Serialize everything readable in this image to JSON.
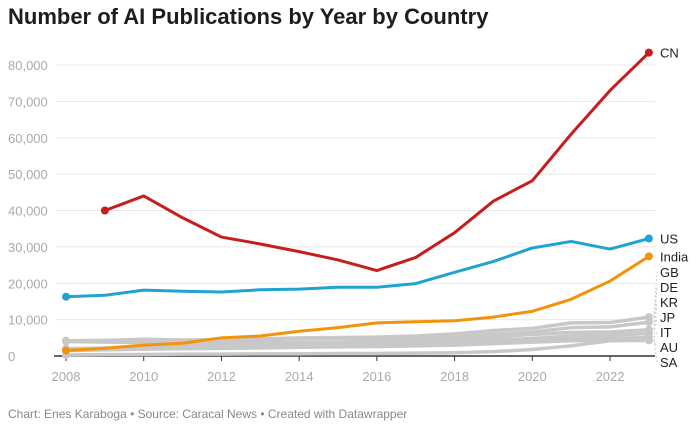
{
  "chart_data": {
    "type": "line",
    "title": "Number of AI Publications by Year by Country",
    "footer": "Chart: Enes Karaboga • Source: Caracal News • Created with Datawrapper",
    "x": [
      2008,
      2009,
      2010,
      2011,
      2012,
      2013,
      2014,
      2015,
      2016,
      2017,
      2018,
      2019,
      2020,
      2021,
      2022,
      2023
    ],
    "xticks": [
      "2008",
      "2010",
      "2012",
      "2014",
      "2016",
      "2018",
      "2020",
      "2022"
    ],
    "yticks": [
      "0",
      "10,000",
      "20,000",
      "30,000",
      "40,000",
      "50,000",
      "60,000",
      "70,000",
      "80,000"
    ],
    "ylim": [
      0,
      80000
    ],
    "grid": true,
    "series": [
      {
        "name": "SA",
        "color": "#c8c8c8",
        "values": [
          300,
          400,
          400,
          500,
          500,
          600,
          600,
          700,
          700,
          800,
          900,
          1200,
          1800,
          2800,
          4200,
          4300
        ]
      },
      {
        "name": "AU",
        "color": "#c8c8c8",
        "values": [
          1500,
          1700,
          1900,
          2000,
          2100,
          2200,
          2400,
          2500,
          2600,
          2800,
          3000,
          3400,
          3800,
          4200,
          4400,
          4600
        ]
      },
      {
        "name": "IT",
        "color": "#c8c8c8",
        "values": [
          2000,
          2200,
          2300,
          2400,
          2500,
          2600,
          2800,
          2900,
          3000,
          3200,
          3400,
          3800,
          4200,
          4600,
          4800,
          5100
        ]
      },
      {
        "name": "JP",
        "color": "#c8c8c8",
        "values": [
          4000,
          3800,
          3700,
          3600,
          3600,
          3600,
          3700,
          3700,
          3600,
          3800,
          4000,
          4400,
          4800,
          5500,
          5700,
          6200
        ]
      },
      {
        "name": "KR",
        "color": "#c8c8c8",
        "values": [
          1800,
          2100,
          2500,
          2800,
          3100,
          3300,
          3600,
          3800,
          4000,
          4300,
          4700,
          5300,
          5900,
          6500,
          6600,
          7200
        ]
      },
      {
        "name": "DE",
        "color": "#c8c8c8",
        "values": [
          4200,
          4200,
          4300,
          4200,
          4300,
          4500,
          4700,
          4800,
          4800,
          5100,
          5400,
          6000,
          6600,
          7800,
          8000,
          9300
        ]
      },
      {
        "name": "GB",
        "color": "#c8c8c8",
        "values": [
          4200,
          4300,
          4600,
          4400,
          4500,
          4700,
          5000,
          5100,
          5200,
          5500,
          6100,
          7000,
          7600,
          9100,
          9200,
          10700
        ]
      },
      {
        "name": "India",
        "color": "#f5920b",
        "values": [
          1500,
          2100,
          3000,
          3500,
          5000,
          5500,
          6800,
          7800,
          9100,
          9400,
          9700,
          10700,
          12300,
          15600,
          20600,
          27400
        ]
      },
      {
        "name": "US",
        "color": "#1fa3d1",
        "values": [
          16300,
          16700,
          18100,
          17800,
          17600,
          18200,
          18400,
          18900,
          18900,
          19900,
          23000,
          26000,
          29700,
          31500,
          29400,
          32300
        ]
      },
      {
        "name": "CN",
        "color": "#c71e1d",
        "values": [
          null,
          40000,
          44000,
          38000,
          32700,
          30800,
          28700,
          26400,
          23500,
          27100,
          33900,
          42600,
          48200,
          61000,
          73000,
          83400
        ]
      }
    ]
  }
}
